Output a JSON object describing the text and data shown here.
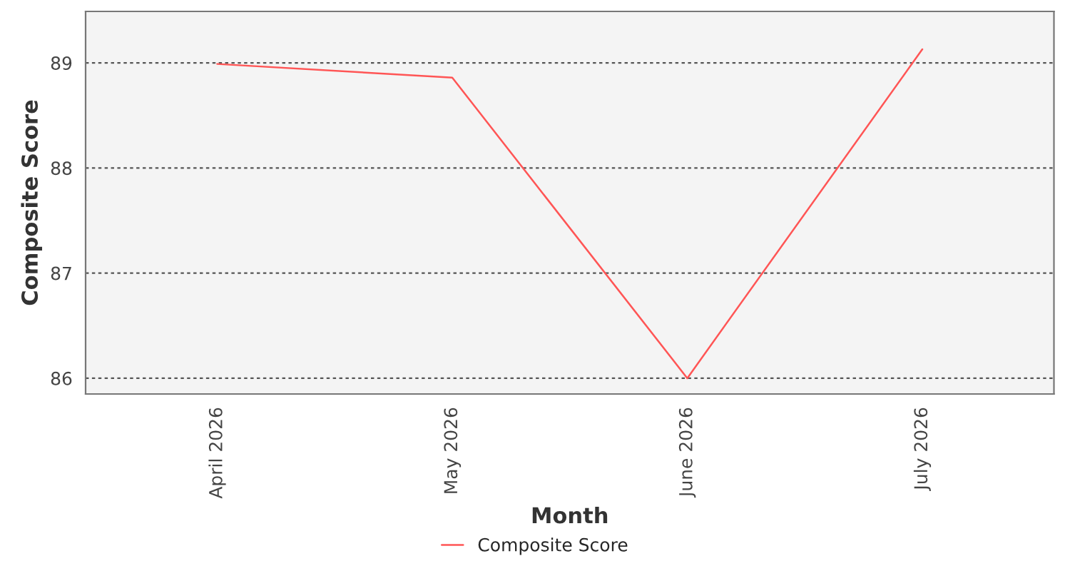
{
  "chart_data": {
    "type": "line",
    "xlabel": "Month",
    "ylabel": "Composite Score",
    "categories": [
      "April 2026",
      "May 2026",
      "June 2026",
      "July 2026"
    ],
    "series": [
      {
        "name": "Composite Score",
        "color": "#ff5555",
        "values": [
          88.99,
          88.86,
          86.0,
          89.13
        ]
      }
    ],
    "ylim": [
      85.85,
      89.49
    ],
    "yticks": [
      86,
      87,
      88,
      89
    ],
    "grid": "y",
    "legend": "bottom",
    "marker": "none"
  }
}
